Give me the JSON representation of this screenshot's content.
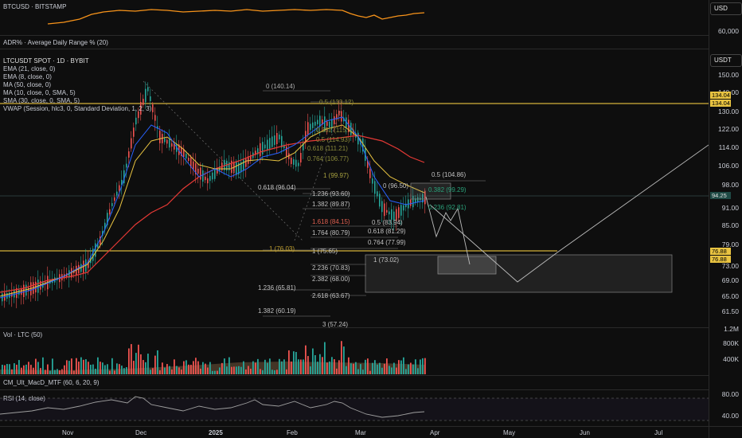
{
  "btc_pane": {
    "legend": "BTCUSD · BITSTAMP",
    "currency_badge": "USD",
    "tick": "60,000"
  },
  "adr_pane": {
    "legend": "ADR% · Average Daily Range % (20)"
  },
  "main_pane": {
    "symbol": "LTCUSDT SPOT · 1D · BYBIT",
    "indicators": [
      "EMA (21, close, 0)",
      "EMA (8, close, 0)",
      "MA (50, close, 0)",
      "MA (10, close, 0, SMA, 5)",
      "SMA (30, close, 0, SMA, 5)",
      "VWAP (Session, hlc3, 0, Standard Deviation, 1, 2, 3)"
    ],
    "currency_badge": "USDT",
    "price_ticks": [
      "150.00",
      "140.00",
      "130.00",
      "122.00",
      "114.00",
      "106.00",
      "98.00",
      "91.00",
      "85.00",
      "79.00",
      "73.00",
      "69.00",
      "65.00",
      "61.50"
    ],
    "price_tags": [
      "134.04",
      "134.04",
      "94.25",
      "76.88",
      "76.88"
    ],
    "fib_left": [
      "0 (140.14)",
      "0.5 (133.12)",
      "0.382 (115.7)",
      "0.5 (114.93)",
      "0.618 (111.21)",
      "0.764 (106.77)",
      "1 (99.97)",
      "0.618 (96.04)",
      "1.236 (93.60)",
      "1.382 (89.87)",
      "1.618 (84.15)",
      "1.764 (80.79)",
      "1 (76.03)",
      "2.236 (70.83)",
      "2.382 (68.00)",
      "1.236 (65.81)",
      "2.618 (63.67)",
      "1.382 (60.19)",
      "3 (57.24)"
    ],
    "fib_right": [
      "0.5 (104.86)",
      "0 (96.50)",
      "0.382 (99.29)",
      "0.236 (92.81)",
      "0.5 (83.94)",
      "0.618 (81.29)",
      "0.764 (77.99)",
      "1 (73.02)"
    ],
    "fib_right_extra": "1 (75.65)"
  },
  "vol_pane": {
    "legend": "Vol · LTC (50)",
    "ticks": [
      "1.2M",
      "800K",
      "400K"
    ]
  },
  "macd_pane": {
    "legend": "CM_Ult_MacD_MTF (60, 6, 20, 9)"
  },
  "rsi_pane": {
    "legend": "RSI (14, close)",
    "ticks": [
      "80.00",
      "40.00"
    ]
  },
  "time_axis": [
    "Nov",
    "Dec",
    "2025",
    "Feb",
    "Mar",
    "Apr",
    "May",
    "Jun",
    "Jul"
  ],
  "colors": {
    "background": "#0e0e0e",
    "candle_up": "#26a69a",
    "candle_down": "#ef5350",
    "btc_line": "#f7931a",
    "ema21": "#e8c341",
    "ma50": "#e53935",
    "ema8": "#2962ff",
    "horizontal_level": "#d4b13a"
  }
}
